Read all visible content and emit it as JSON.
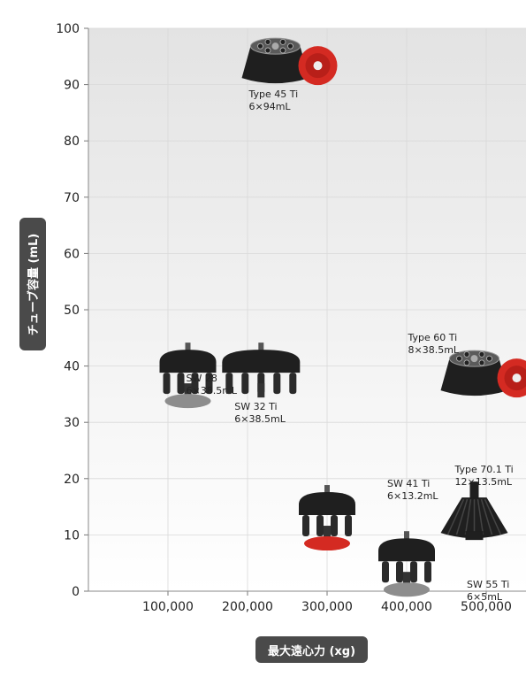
{
  "chart_data": {
    "type": "scatter",
    "title": "",
    "xlabel": "最大遠心力 (xg)",
    "ylabel": "チューブ容量 (mL)",
    "xlim": [
      0,
      550000
    ],
    "ylim": [
      0,
      100
    ],
    "x_ticks": [
      "100,000",
      "200,000",
      "300,000",
      "400,000",
      "500,000"
    ],
    "x_tick_values": [
      100000,
      200000,
      300000,
      400000,
      500000
    ],
    "y_ticks": [
      "0",
      "10",
      "20",
      "30",
      "40",
      "50",
      "60",
      "70",
      "80",
      "90",
      "100"
    ],
    "y_tick_values": [
      0,
      10,
      20,
      30,
      40,
      50,
      60,
      70,
      80,
      90,
      100
    ],
    "grid": true,
    "legend": "none",
    "points": [
      {
        "name": "Type 45 Ti",
        "capacity": "6×94mL",
        "x": 235000,
        "y": 94,
        "style": "fixed-angle",
        "accent": "red-lid",
        "label_pos": "below"
      },
      {
        "name": "Type 60 Ti",
        "capacity": "8×38.5mL",
        "x": 485000,
        "y": 38.5,
        "style": "fixed-angle",
        "accent": "red-lid",
        "label_pos": "above-left"
      },
      {
        "name": "Type 70.1 Ti",
        "capacity": "12×13.5mL",
        "x": 485000,
        "y": 13.5,
        "style": "fixed-angle-tall",
        "accent": "",
        "label_pos": "above"
      },
      {
        "name": "SW 28",
        "capacity": "6×38.5mL",
        "x": 125000,
        "y": 38.5,
        "style": "swing-bucket",
        "accent": "gray-base",
        "label_pos": "left"
      },
      {
        "name": "SW 32 Ti",
        "capacity": "6×38.5mL",
        "x": 217000,
        "y": 38.5,
        "style": "swing-bucket-wide",
        "accent": "",
        "label_pos": "below"
      },
      {
        "name": "SW 41 Ti",
        "capacity": "6×13.2mL",
        "x": 300000,
        "y": 13.2,
        "style": "swing-bucket",
        "accent": "red-base",
        "label_pos": "right"
      },
      {
        "name": "SW 55 Ti",
        "capacity": "6×5mL",
        "x": 400000,
        "y": 5,
        "style": "swing-bucket",
        "accent": "gray-base",
        "label_pos": "right"
      }
    ],
    "colors": {
      "rotor_body": "#1f1f1f",
      "red_accent": "#d42a22",
      "gray_base": "#8d8d8d",
      "grid": "#d9d9d9",
      "badge": "#4a4a4a"
    }
  }
}
